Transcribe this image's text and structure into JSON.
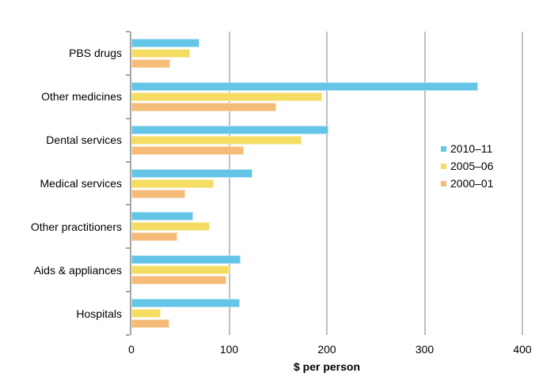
{
  "chart_data": {
    "type": "bar",
    "orientation": "horizontal",
    "title": "",
    "xlabel": "$ per person",
    "ylabel": "",
    "xlim": [
      0,
      400
    ],
    "xticks": [
      0,
      100,
      200,
      300,
      400
    ],
    "grid": "vertical",
    "legend_position": "middle-right",
    "categories": [
      "PBS drugs",
      "Other medicines",
      "Dental services",
      "Medical services",
      "Other practitioners",
      "Aids & appliances",
      "Hospitals"
    ],
    "series": [
      {
        "name": "2010–11",
        "color": "#64C5E7",
        "border_color": "#BCE3F3",
        "values": [
          70,
          355,
          202,
          124,
          63,
          112,
          111
        ]
      },
      {
        "name": "2005–06",
        "color": "#F5DC62",
        "border_color": "#FAEEB2",
        "values": [
          60,
          195,
          174,
          84,
          80,
          100,
          30
        ]
      },
      {
        "name": "2000–01",
        "color": "#F5BC79",
        "border_color": "#FADFC1",
        "values": [
          40,
          148,
          115,
          55,
          47,
          97,
          39
        ]
      }
    ]
  },
  "colors": {
    "background": "#FFFFFF",
    "gridline": "#BFBFBF",
    "axis": "#A6A6A6",
    "text": "#000000"
  }
}
